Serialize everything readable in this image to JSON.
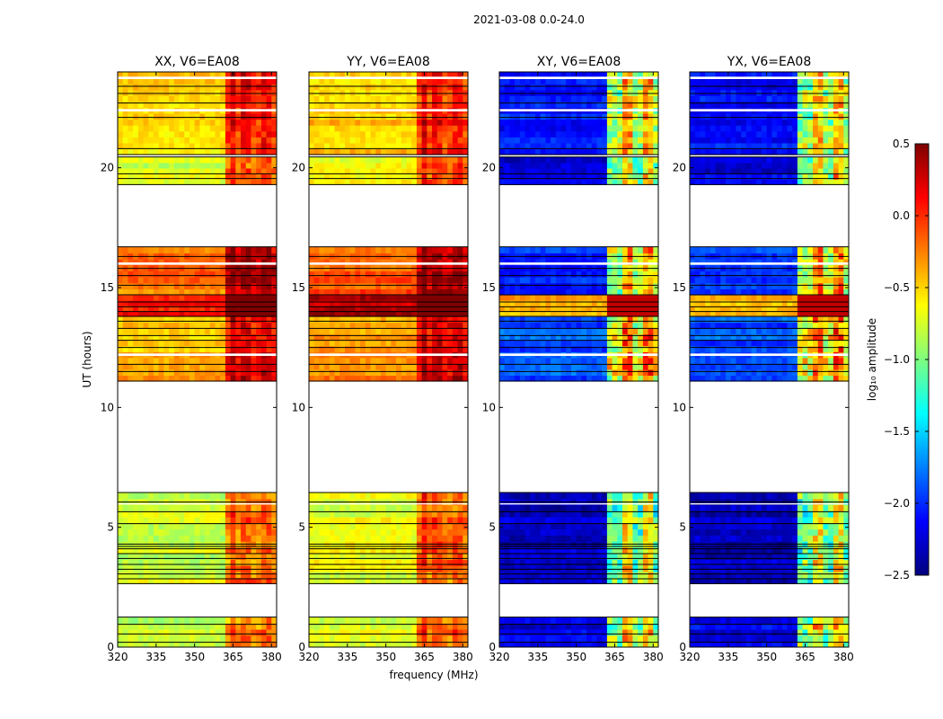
{
  "figure_title": "2021-03-08 0.0-24.0",
  "colors": {
    "flag_line": "#000000",
    "gap": "#ffffff",
    "colormap": "jet",
    "colormap_stops": [
      "#00007f",
      "#0000ff",
      "#007fff",
      "#00ffff",
      "#7fff7f",
      "#ffff00",
      "#ff7f00",
      "#ff0000",
      "#7f0000"
    ]
  },
  "chart_data": {
    "type": "heatmap",
    "title": "2021-03-08 0.0-24.0",
    "xlabel": "frequency (MHz)",
    "ylabel": "UT (hours)",
    "xlim": [
      320,
      382
    ],
    "ylim": [
      0,
      24
    ],
    "x_ticks": [
      320,
      335,
      350,
      365,
      380
    ],
    "x_tick_labels": [
      "320",
      "335",
      "350",
      "365",
      "380"
    ],
    "y_ticks": [
      0,
      5,
      10,
      15,
      20
    ],
    "y_tick_labels": [
      "0",
      "5",
      "10",
      "15",
      "20"
    ],
    "colorbar": {
      "label": "log₁₀ amplitude",
      "range": [
        -2.5,
        0.5
      ],
      "ticks": [
        0.5,
        0.0,
        -0.5,
        -1.0,
        -1.5,
        -2.0,
        -2.5
      ],
      "tick_labels": [
        "0.5",
        "0.0",
        "−0.5",
        "−1.0",
        "−1.5",
        "−2.0",
        "−2.5"
      ]
    },
    "data_time_ranges": [
      [
        0,
        1.25
      ],
      [
        2.65,
        6.45
      ],
      [
        11.1,
        16.7
      ],
      [
        19.3,
        20.45
      ],
      [
        20.55,
        24.0
      ]
    ],
    "empty_time_ranges": [
      [
        1.25,
        2.65
      ],
      [
        6.45,
        11.1
      ],
      [
        16.7,
        19.3
      ]
    ],
    "bright_frequency_band_MHz": [
      363,
      381
    ],
    "panels": [
      {
        "name": "XX",
        "title": "XX, V6=EA08",
        "typical_log_amplitude": -0.6,
        "bright_band_log_amplitude": -0.1,
        "intervals": [
          {
            "range": [
              0,
              1.25
            ],
            "level": -0.85
          },
          {
            "range": [
              2.65,
              6.45
            ],
            "level": -0.75
          },
          {
            "range": [
              11.1,
              13.8
            ],
            "level": -0.4
          },
          {
            "range": [
              13.8,
              14.7
            ],
            "level": 0.1
          },
          {
            "range": [
              14.7,
              16.7
            ],
            "level": -0.2
          },
          {
            "range": [
              19.3,
              20.45
            ],
            "level": -0.75
          },
          {
            "range": [
              20.55,
              24.0
            ],
            "level": -0.55
          }
        ]
      },
      {
        "name": "YY",
        "title": "YY, V6=EA08",
        "typical_log_amplitude": -0.5,
        "bright_band_log_amplitude": -0.05,
        "intervals": [
          {
            "range": [
              0,
              1.25
            ],
            "level": -0.75
          },
          {
            "range": [
              2.65,
              6.45
            ],
            "level": -0.7
          },
          {
            "range": [
              11.1,
              13.8
            ],
            "level": -0.3
          },
          {
            "range": [
              13.8,
              14.7
            ],
            "level": 0.35
          },
          {
            "range": [
              14.7,
              16.7
            ],
            "level": -0.15
          },
          {
            "range": [
              19.3,
              20.45
            ],
            "level": -0.6
          },
          {
            "range": [
              20.55,
              24.0
            ],
            "level": -0.45
          }
        ]
      },
      {
        "name": "XY",
        "title": "XY, V6=EA08",
        "typical_log_amplitude": -2.1,
        "bright_band_log_amplitude": -0.9,
        "intervals": [
          {
            "range": [
              0,
              1.25
            ],
            "level": -2.2
          },
          {
            "range": [
              2.65,
              6.45
            ],
            "level": -2.3
          },
          {
            "range": [
              11.1,
              13.8
            ],
            "level": -1.9
          },
          {
            "range": [
              13.8,
              14.7
            ],
            "level": -0.4
          },
          {
            "range": [
              14.7,
              16.7
            ],
            "level": -2.0
          },
          {
            "range": [
              19.3,
              20.45
            ],
            "level": -2.2
          },
          {
            "range": [
              20.55,
              24.0
            ],
            "level": -2.1
          }
        ]
      },
      {
        "name": "YX",
        "title": "YX, V6=EA08",
        "typical_log_amplitude": -2.1,
        "bright_band_log_amplitude": -0.9,
        "intervals": [
          {
            "range": [
              0,
              1.25
            ],
            "level": -2.2
          },
          {
            "range": [
              2.65,
              6.45
            ],
            "level": -2.3
          },
          {
            "range": [
              11.1,
              13.8
            ],
            "level": -1.9
          },
          {
            "range": [
              13.8,
              14.7
            ],
            "level": -0.4
          },
          {
            "range": [
              14.7,
              16.7
            ],
            "level": -2.0
          },
          {
            "range": [
              19.3,
              20.45
            ],
            "level": -2.2
          },
          {
            "range": [
              20.55,
              24.0
            ],
            "level": -2.1
          }
        ]
      }
    ]
  }
}
